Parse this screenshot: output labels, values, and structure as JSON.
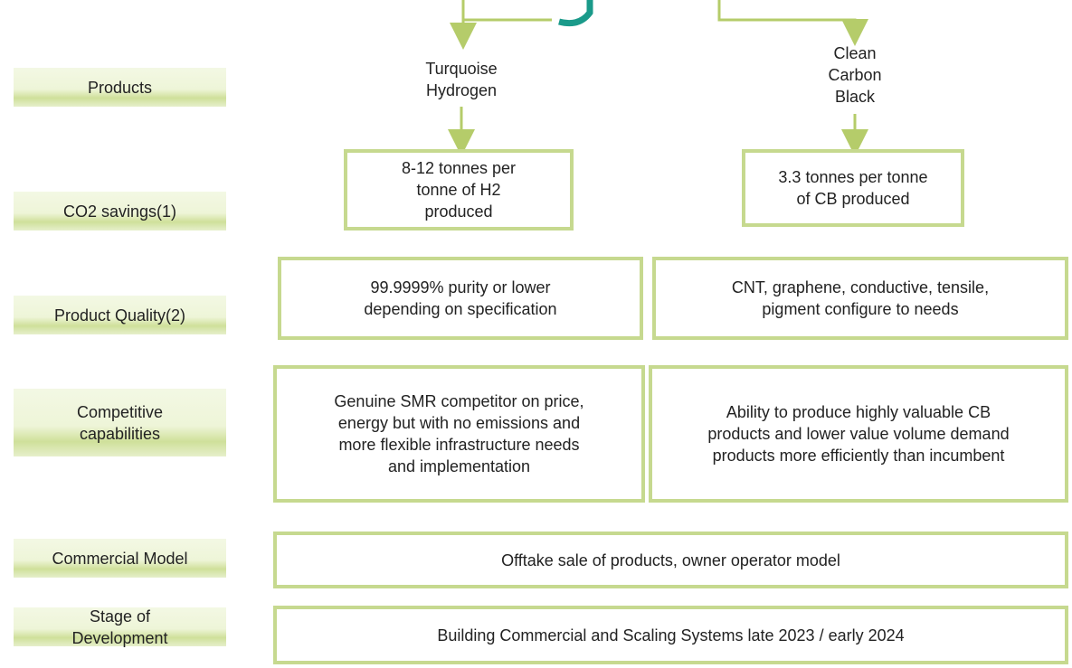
{
  "row_labels": [
    [
      "Products"
    ],
    [
      "CO2 savings(1)"
    ],
    [
      "Product Quality(2)"
    ],
    [
      "Competitive",
      "capabilities"
    ],
    [
      "Commercial Model"
    ],
    [
      "Stage of",
      "Development"
    ]
  ],
  "products": [
    [
      "Turquoise",
      "Hydrogen"
    ],
    [
      "Clean",
      "Carbon",
      "Black"
    ]
  ],
  "co2_savings": [
    [
      "8-12 tonnes per",
      "tonne of H2",
      "produced"
    ],
    [
      "3.3 tonnes per tonne",
      "of CB produced"
    ]
  ],
  "product_quality": [
    [
      "99.9999% purity or lower",
      "depending on specification"
    ],
    [
      "CNT, graphene, conductive, tensile,",
      "pigment configure to needs"
    ]
  ],
  "competitive_capabilities": [
    [
      "Genuine SMR competitor on price,",
      "energy but with no emissions and",
      "more flexible infrastructure needs",
      "and implementation"
    ],
    [
      "Ability to produce highly valuable CB",
      "products and lower value volume demand",
      "products more efficiently than incumbent"
    ]
  ],
  "commercial_model": [
    [
      "Offtake sale of products, owner operator model"
    ]
  ],
  "stage_of_development": [
    [
      "Building Commercial and Scaling Systems late 2023 / early 2024"
    ]
  ]
}
